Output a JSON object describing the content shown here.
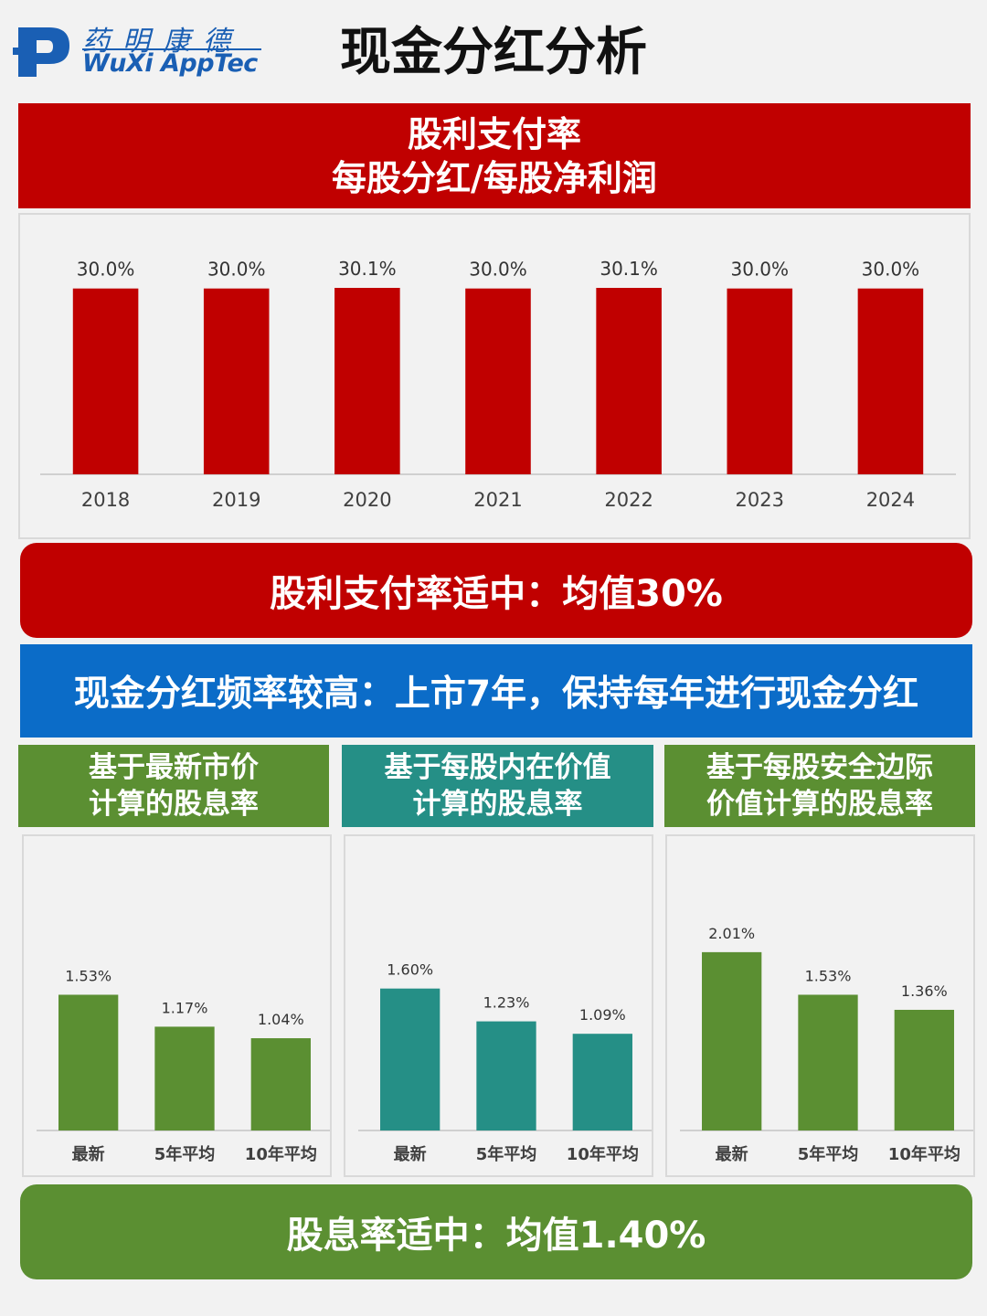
{
  "logo": {
    "cn": "药明康德",
    "en": "WuXi AppTec",
    "mark": "P"
  },
  "page_title": "现金分红分析",
  "payout_header": {
    "line1": "股利支付率",
    "line2": "每股分红/每股净利润"
  },
  "payout_summary": "股利支付率适中：均值30%",
  "frequency_banner": "现金分红频率较高：上市7年，保持每年进行现金分红",
  "yield_panels": [
    {
      "line1": "基于最新市价",
      "line2": "计算的股息率"
    },
    {
      "line1": "基于每股内在价值",
      "line2": "计算的股息率"
    },
    {
      "line1": "基于每股安全边际",
      "line2": "价值计算的股息率"
    }
  ],
  "yield_summary": "股息率适中：均值1.40%",
  "colors": {
    "red": "#c00000",
    "blue": "#0b6cc8",
    "green": "#5b8f32",
    "teal": "#258f86"
  },
  "chart_data": [
    {
      "type": "bar",
      "categories": [
        "2018",
        "2019",
        "2020",
        "2021",
        "2022",
        "2023",
        "2024"
      ],
      "values": [
        30.0,
        30.0,
        30.1,
        30.0,
        30.1,
        30.0,
        30.0
      ],
      "labels": [
        "30.0%",
        "30.0%",
        "30.1%",
        "30.0%",
        "30.1%",
        "30.0%",
        "30.0%"
      ],
      "color": "#c00000",
      "grid": false
    },
    {
      "type": "bar",
      "categories": [
        "最新",
        "5年平均",
        "10年平均"
      ],
      "values": [
        1.53,
        1.17,
        1.04
      ],
      "labels": [
        "1.53%",
        "1.17%",
        "1.04%"
      ],
      "color": "#5b8f32",
      "grid": false
    },
    {
      "type": "bar",
      "categories": [
        "最新",
        "5年平均",
        "10年平均"
      ],
      "values": [
        1.6,
        1.23,
        1.09
      ],
      "labels": [
        "1.60%",
        "1.23%",
        "1.09%"
      ],
      "color": "#258f86",
      "grid": false
    },
    {
      "type": "bar",
      "categories": [
        "最新",
        "5年平均",
        "10年平均"
      ],
      "values": [
        2.01,
        1.53,
        1.36
      ],
      "labels": [
        "2.01%",
        "1.53%",
        "1.36%"
      ],
      "color": "#5b8f32",
      "grid": false
    }
  ]
}
